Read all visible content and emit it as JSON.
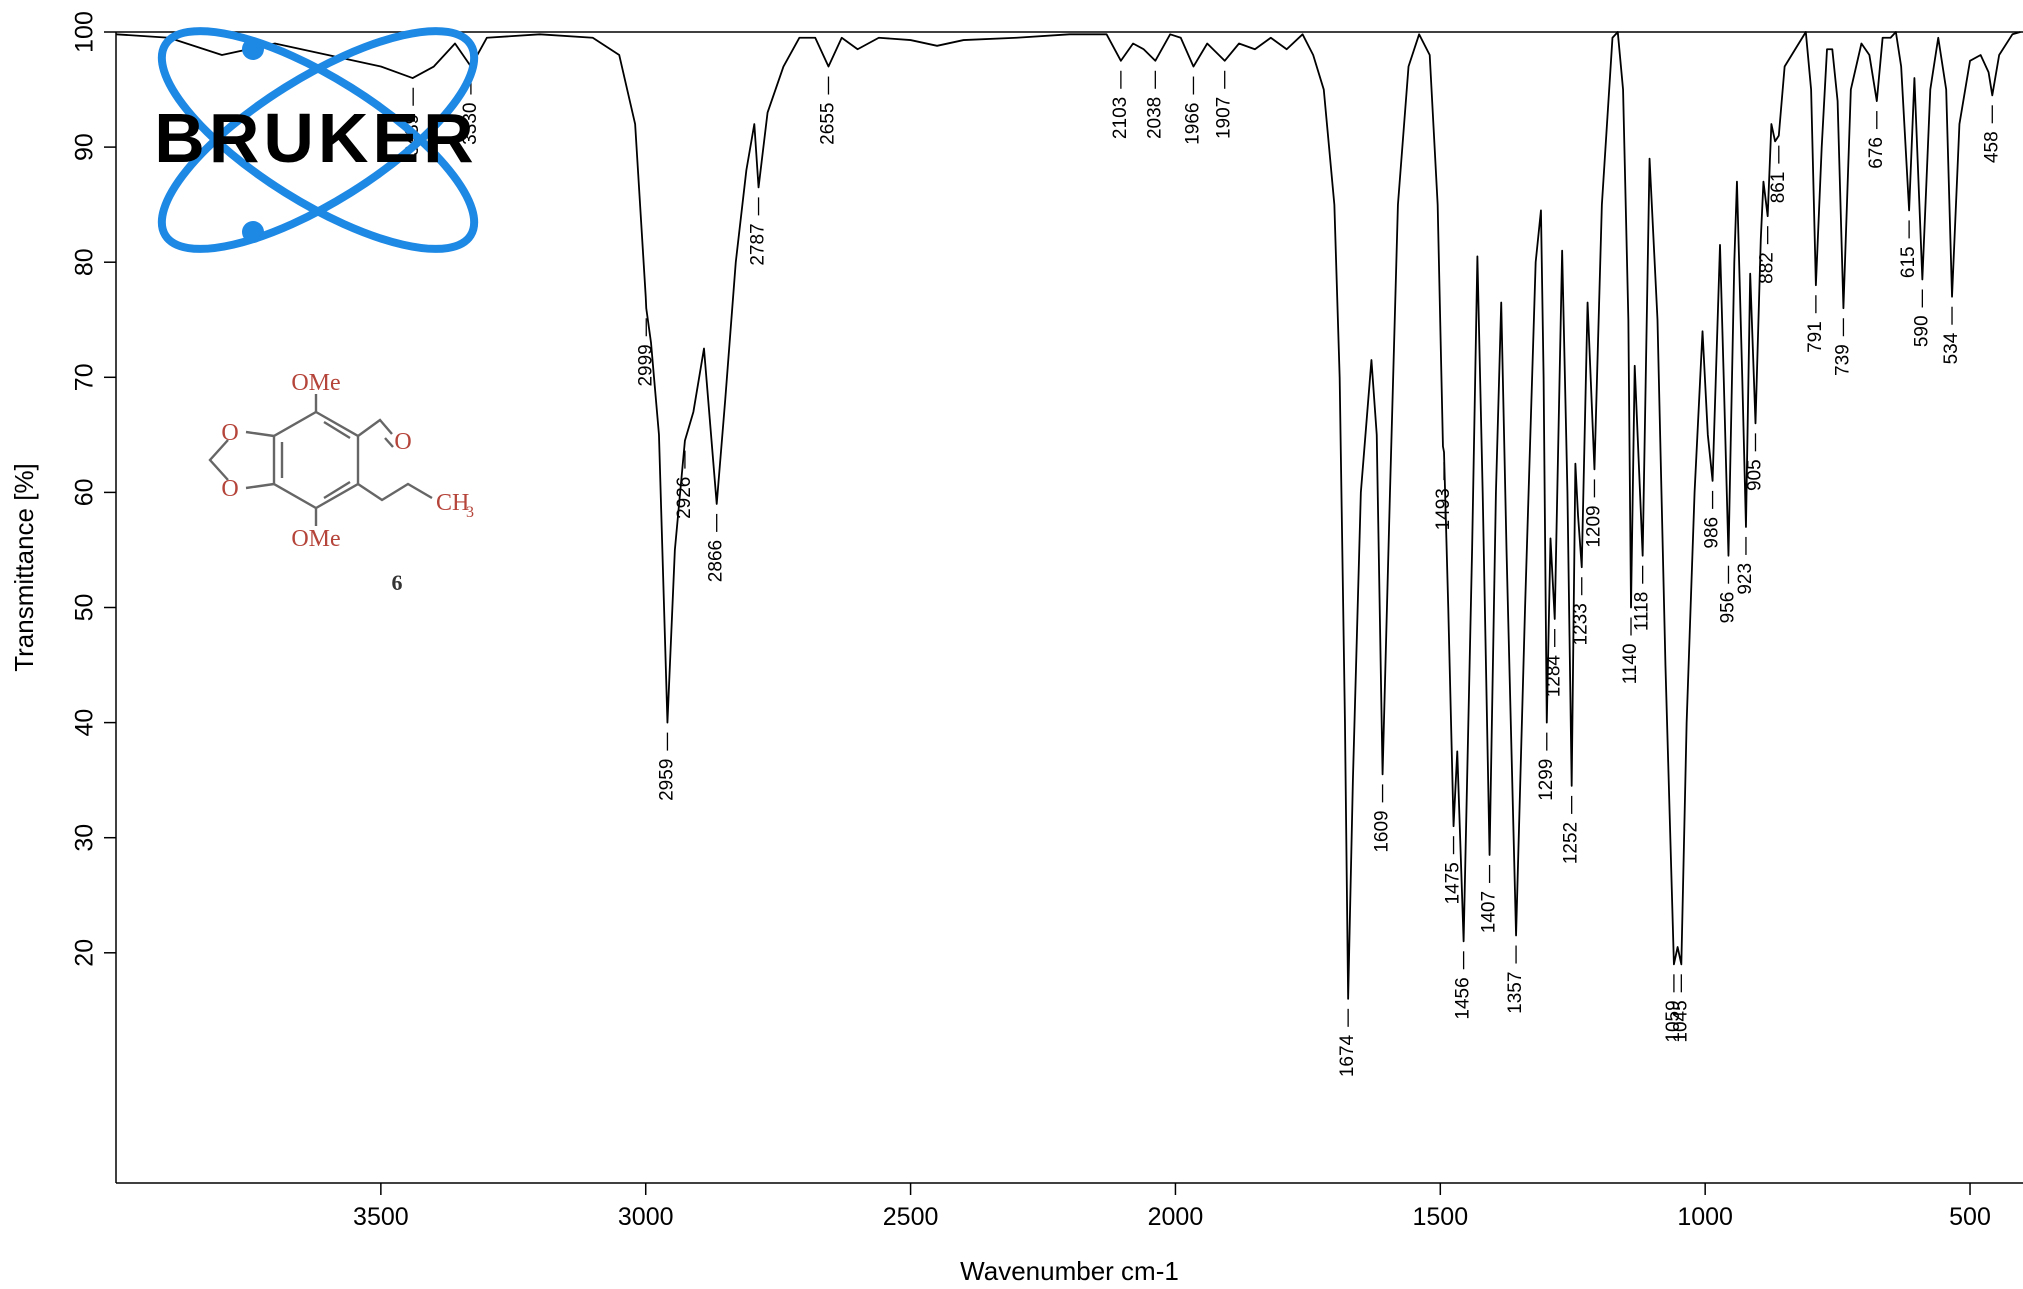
{
  "chart_data": {
    "type": "line",
    "x_label": "Wavenumber cm-1",
    "y_label": "Transmittance [%]",
    "color": "#000000",
    "xlim": [
      4000,
      400
    ],
    "ylim": [
      0,
      100
    ],
    "xticks": [
      3500,
      3000,
      2500,
      2000,
      1500,
      1000,
      500
    ],
    "yticks": [
      20,
      30,
      40,
      50,
      60,
      70,
      80,
      90,
      100
    ],
    "x": [
      4000,
      3900,
      3800,
      3700,
      3600,
      3500,
      3440,
      3400,
      3360,
      3330,
      3300,
      3200,
      3100,
      3050,
      3020,
      3000,
      2999,
      2990,
      2975,
      2959,
      2945,
      2926,
      2910,
      2890,
      2866,
      2850,
      2830,
      2810,
      2795,
      2787,
      2770,
      2740,
      2710,
      2680,
      2655,
      2630,
      2600,
      2560,
      2500,
      2450,
      2400,
      2300,
      2200,
      2130,
      2103,
      2080,
      2060,
      2038,
      2010,
      1990,
      1966,
      1940,
      1907,
      1880,
      1850,
      1820,
      1790,
      1760,
      1740,
      1720,
      1700,
      1690,
      1680,
      1674,
      1665,
      1650,
      1630,
      1620,
      1609,
      1595,
      1580,
      1560,
      1540,
      1520,
      1505,
      1495,
      1493,
      1485,
      1475,
      1468,
      1456,
      1440,
      1430,
      1420,
      1407,
      1395,
      1385,
      1375,
      1357,
      1340,
      1320,
      1310,
      1305,
      1299,
      1292,
      1284,
      1270,
      1260,
      1252,
      1245,
      1240,
      1233,
      1222,
      1209,
      1195,
      1175,
      1165,
      1155,
      1145,
      1140,
      1133,
      1118,
      1105,
      1090,
      1075,
      1059,
      1052,
      1045,
      1035,
      1020,
      1005,
      995,
      986,
      972,
      965,
      956,
      945,
      940,
      930,
      923,
      915,
      905,
      895,
      890,
      882,
      875,
      868,
      861,
      850,
      830,
      810,
      800,
      791,
      780,
      770,
      760,
      750,
      739,
      725,
      705,
      690,
      676,
      665,
      650,
      640,
      630,
      615,
      605,
      590,
      575,
      560,
      545,
      534,
      520,
      500,
      480,
      465,
      458,
      445,
      420,
      405
    ],
    "values": [
      99.8,
      99.5,
      98,
      99,
      98,
      97,
      96,
      97,
      99,
      97,
      99.5,
      99.8,
      99.5,
      98,
      92,
      77,
      76,
      73,
      65,
      40,
      55,
      64.5,
      67,
      72.5,
      59,
      68,
      80,
      88,
      92,
      86.5,
      93,
      97,
      99.5,
      99.5,
      97,
      99.5,
      98.5,
      99.5,
      99.3,
      98.8,
      99.3,
      99.5,
      99.8,
      99.8,
      97.5,
      99,
      98.5,
      97.5,
      99.8,
      99.5,
      97,
      99,
      97.5,
      99,
      98.5,
      99.5,
      98.5,
      99.8,
      98,
      95,
      85,
      70,
      40,
      16,
      35,
      60,
      71.5,
      65,
      35.5,
      60,
      85,
      97,
      99.8,
      98,
      85,
      64,
      63.5,
      50,
      31,
      37.5,
      21,
      55,
      80.5,
      60,
      28.5,
      60,
      76.5,
      55,
      21.5,
      50,
      80,
      84.5,
      70,
      40,
      56,
      49,
      81,
      60,
      34.5,
      62.5,
      58,
      53.5,
      76.5,
      62,
      85,
      99.5,
      100,
      95,
      75,
      50,
      71,
      54.5,
      89,
      75,
      45,
      19,
      20.5,
      19,
      40,
      60,
      74,
      65,
      61,
      81.5,
      70,
      54.5,
      80,
      87,
      70,
      57,
      79,
      66,
      82,
      87,
      84,
      92,
      90.5,
      91,
      97,
      98.5,
      100,
      95,
      78,
      90,
      98.5,
      98.5,
      94,
      76,
      95,
      99,
      98,
      94,
      99.5,
      99.5,
      100,
      97,
      84.5,
      96,
      78.5,
      95,
      99.5,
      95,
      77,
      92,
      97.5,
      98,
      96.5,
      94.5,
      98,
      99.8,
      100
    ],
    "peak_labels": [
      3439,
      3330,
      2999,
      2959,
      2926,
      2866,
      2787,
      2655,
      2103,
      2038,
      1966,
      1907,
      1674,
      1609,
      1493,
      1475,
      1456,
      1407,
      1357,
      1299,
      1284,
      1252,
      1233,
      1209,
      1140,
      1118,
      1059,
      1045,
      986,
      956,
      923,
      905,
      882,
      861,
      791,
      739,
      676,
      615,
      590,
      534,
      458
    ],
    "logo": "BRUKER",
    "structure_labels": [
      "OMe",
      "O",
      "O",
      "O",
      "OMe",
      "CH",
      "3",
      "6"
    ]
  }
}
